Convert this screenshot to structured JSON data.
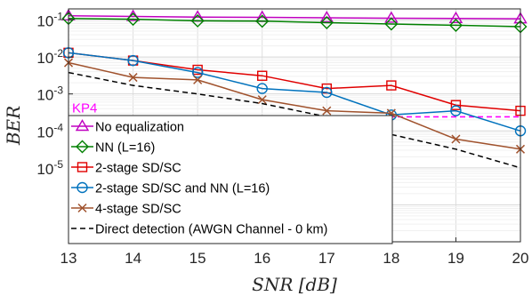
{
  "chart_data": {
    "type": "line",
    "xlabel": "SNR [dB]",
    "ylabel": "BER",
    "x": [
      13,
      14,
      15,
      16,
      17,
      18,
      19,
      20
    ],
    "xlim": [
      13,
      20
    ],
    "ylim": [
      1e-07,
      0.2
    ],
    "y_scale": "log",
    "grid": true,
    "legend_position": "bottom-left",
    "x_ticks": [
      "13",
      "14",
      "15",
      "16",
      "17",
      "18",
      "19",
      "20"
    ],
    "y_ticks": [
      {
        "base": "10",
        "exp": "-1",
        "value": 0.1
      },
      {
        "base": "10",
        "exp": "-2",
        "value": 0.01
      },
      {
        "base": "10",
        "exp": "-3",
        "value": 0.001
      },
      {
        "base": "10",
        "exp": "-4",
        "value": 0.0001
      },
      {
        "base": "10",
        "exp": "-5",
        "value": 1e-05
      }
    ],
    "threshold": {
      "label": "KP4",
      "value": 0.00024,
      "color": "#ff00ff"
    },
    "series": [
      {
        "name": "No equalization",
        "color": "#c000c0",
        "marker": "triangle",
        "dash": false,
        "values": [
          0.13,
          0.125,
          0.12,
          0.118,
          0.115,
          0.112,
          0.11,
          0.108
        ]
      },
      {
        "name": "NN (L=16)",
        "color": "#008000",
        "marker": "diamond",
        "dash": false,
        "values": [
          0.11,
          0.105,
          0.095,
          0.093,
          0.085,
          0.078,
          0.072,
          0.066
        ]
      },
      {
        "name": "2-stage SD/SC",
        "color": "#e00000",
        "marker": "square",
        "dash": false,
        "values": [
          0.013,
          0.008,
          0.0045,
          0.0031,
          0.0014,
          0.0017,
          0.0005,
          0.00035
        ]
      },
      {
        "name": "2-stage SD/SC and NN (L=16)",
        "color": "#0072bd",
        "marker": "circle",
        "dash": false,
        "values": [
          0.013,
          0.008,
          0.0038,
          0.0014,
          0.0011,
          0.00027,
          0.00035,
          0.0001
        ]
      },
      {
        "name": "4-stage SD/SC",
        "color": "#a0522d",
        "marker": "x",
        "dash": false,
        "values": [
          0.007,
          0.0028,
          0.0024,
          0.0007,
          0.00035,
          0.0003,
          6e-05,
          3.2e-05
        ]
      },
      {
        "name": "Direct detection (AWGN Channel - 0 km)",
        "color": "#000000",
        "marker": "none",
        "dash": true,
        "values": [
          0.0038,
          0.0017,
          0.001,
          0.00055,
          0.00024,
          8e-05,
          3.2e-05,
          1e-05
        ]
      }
    ]
  }
}
